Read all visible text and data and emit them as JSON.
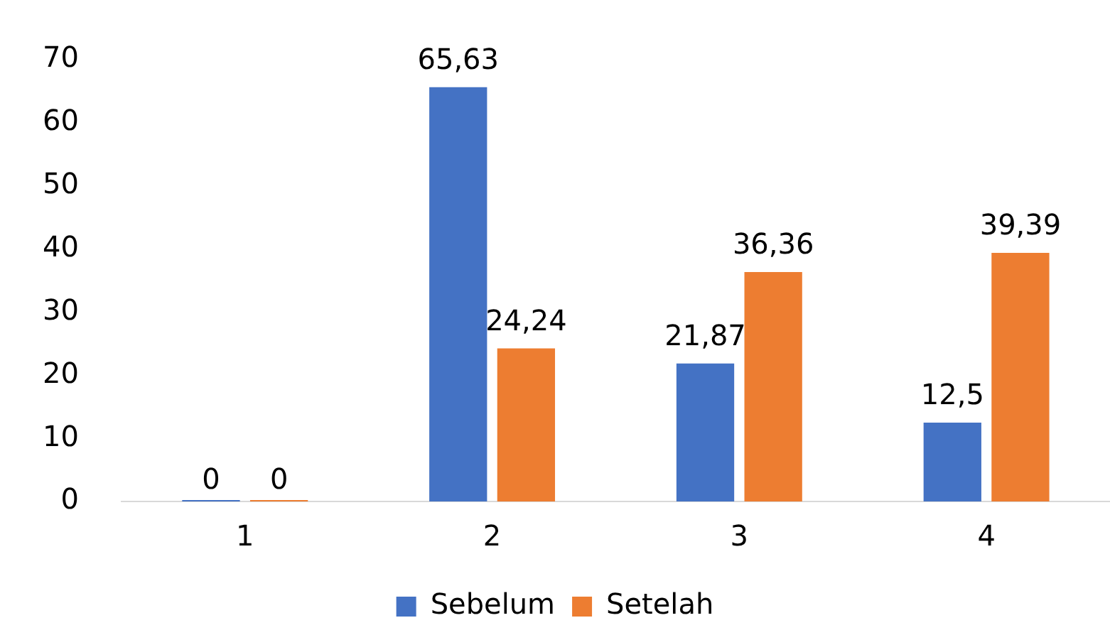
{
  "chart_data": {
    "type": "bar",
    "categories": [
      "1",
      "2",
      "3",
      "4"
    ],
    "series": [
      {
        "name": "Sebelum",
        "color": "#4472c4",
        "values": [
          0,
          65.63,
          21.87,
          12.5
        ],
        "value_labels": [
          "0",
          "65,63",
          "21,87",
          "12,5"
        ]
      },
      {
        "name": "Setelah",
        "color": "#ed7d31",
        "values": [
          0,
          24.24,
          36.36,
          39.39
        ],
        "value_labels": [
          "0",
          "24,24",
          "36,36",
          "39,39"
        ]
      }
    ],
    "ylim": [
      0,
      70
    ],
    "yticks": [
      0,
      10,
      20,
      30,
      40,
      50,
      60,
      70
    ],
    "grid": false,
    "legend": "bottom"
  }
}
